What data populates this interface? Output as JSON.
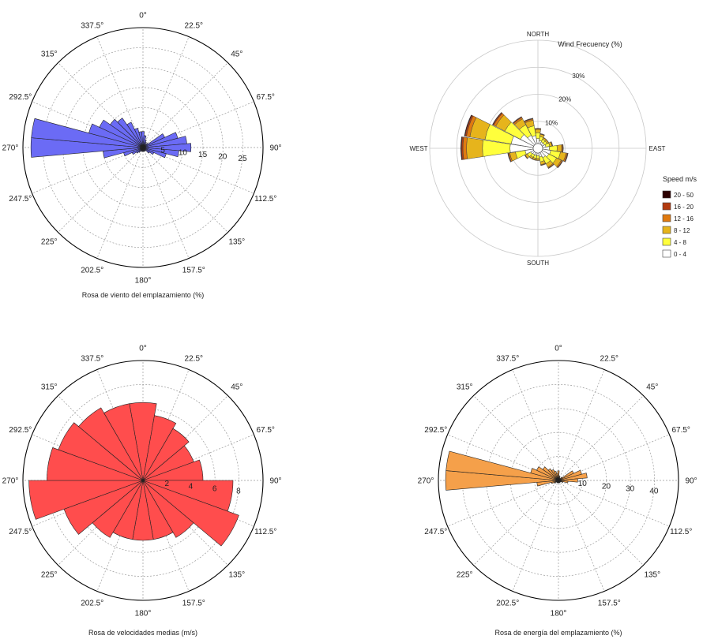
{
  "chart_data": [
    {
      "type": "polar-bar",
      "title": "Rosa de viento del emplazamiento (%)",
      "angle_labels": [
        "0°",
        "22.5°",
        "45°",
        "67.5°",
        "90°",
        "112.5°",
        "135°",
        "157.5°",
        "180°",
        "202.5°",
        "225°",
        "247.5°",
        "270°",
        "292.5°",
        "315°",
        "337.5°"
      ],
      "radial_ticks": [
        "5",
        "10",
        "15",
        "20",
        "25"
      ],
      "rmax": 30,
      "grid": true,
      "color": "#6b6bf5",
      "sectors": 36,
      "values": [
        4,
        3,
        2,
        1.5,
        1,
        1.5,
        6,
        9,
        11,
        12,
        9,
        6,
        3,
        2,
        1,
        1,
        1,
        1,
        1,
        1,
        1,
        1,
        1.5,
        2,
        3,
        5,
        10,
        28,
        28,
        14,
        12,
        10,
        9,
        7,
        5,
        4
      ]
    },
    {
      "type": "wind-rose",
      "title": "Wind Frecuency (%)",
      "directions": [
        "NORTH",
        "EAST",
        "SOUTH",
        "WEST"
      ],
      "radial_ticks": [
        "10%",
        "20%",
        "30%"
      ],
      "rmax": 40,
      "grid": true,
      "legend": {
        "title": "Speed m/s",
        "placement": "right",
        "bins": [
          "20 - 50",
          "16 - 20",
          "12 - 16",
          "8 - 12",
          "4 - 8",
          "0 - 4"
        ],
        "colors": [
          "#2b0000",
          "#b23a0f",
          "#e07a10",
          "#e6b41c",
          "#ffff3c",
          "#ffffff"
        ]
      },
      "sector_totals": [
        6,
        4,
        3,
        3,
        4,
        8,
        10,
        9,
        7,
        5,
        3,
        3,
        3,
        4,
        10,
        28,
        27,
        18,
        12,
        10
      ],
      "bin_fractions": [
        0.01,
        0.02,
        0.05,
        0.22,
        0.38,
        0.32
      ]
    },
    {
      "type": "polar-bar",
      "title": "Rosa de velocidades medias (m/s)",
      "angle_labels": [
        "0°",
        "22.5°",
        "45°",
        "67.5°",
        "90°",
        "112.5°",
        "135°",
        "157.5°",
        "180°",
        "202.5°",
        "225°",
        "247.5°",
        "270°",
        "292.5°",
        "315°",
        "337.5°"
      ],
      "radial_ticks": [
        "2",
        "4",
        "6",
        "8"
      ],
      "rmax": 10,
      "grid": true,
      "color": "#ff4d4d",
      "sectors": 18,
      "values": [
        6.5,
        5.5,
        5,
        4.5,
        5,
        7.5,
        8.5,
        5.5,
        5,
        5,
        5,
        5.5,
        7,
        9.5,
        8,
        7.5,
        7,
        6.5
      ]
    },
    {
      "type": "polar-bar",
      "title": "Rosa de energía del emplazamiento (%)",
      "angle_labels": [
        "0°",
        "22.5°",
        "45°",
        "67.5°",
        "90°",
        "112.5°",
        "135°",
        "157.5°",
        "180°",
        "202.5°",
        "225°",
        "247.5°",
        "270°",
        "292.5°",
        "315°",
        "337.5°"
      ],
      "radial_ticks": [
        "10",
        "20",
        "30",
        "40"
      ],
      "rmax": 50,
      "grid": true,
      "color": "#f5a04a",
      "sectors": 36,
      "values": [
        4,
        2,
        1.5,
        1,
        1,
        2,
        7,
        10,
        12,
        8,
        4,
        2,
        1,
        1,
        1,
        1,
        1,
        1,
        1,
        1,
        1,
        1,
        1,
        1,
        2,
        3,
        9,
        47,
        47,
        12,
        10,
        8,
        6,
        5,
        4,
        3
      ]
    }
  ]
}
